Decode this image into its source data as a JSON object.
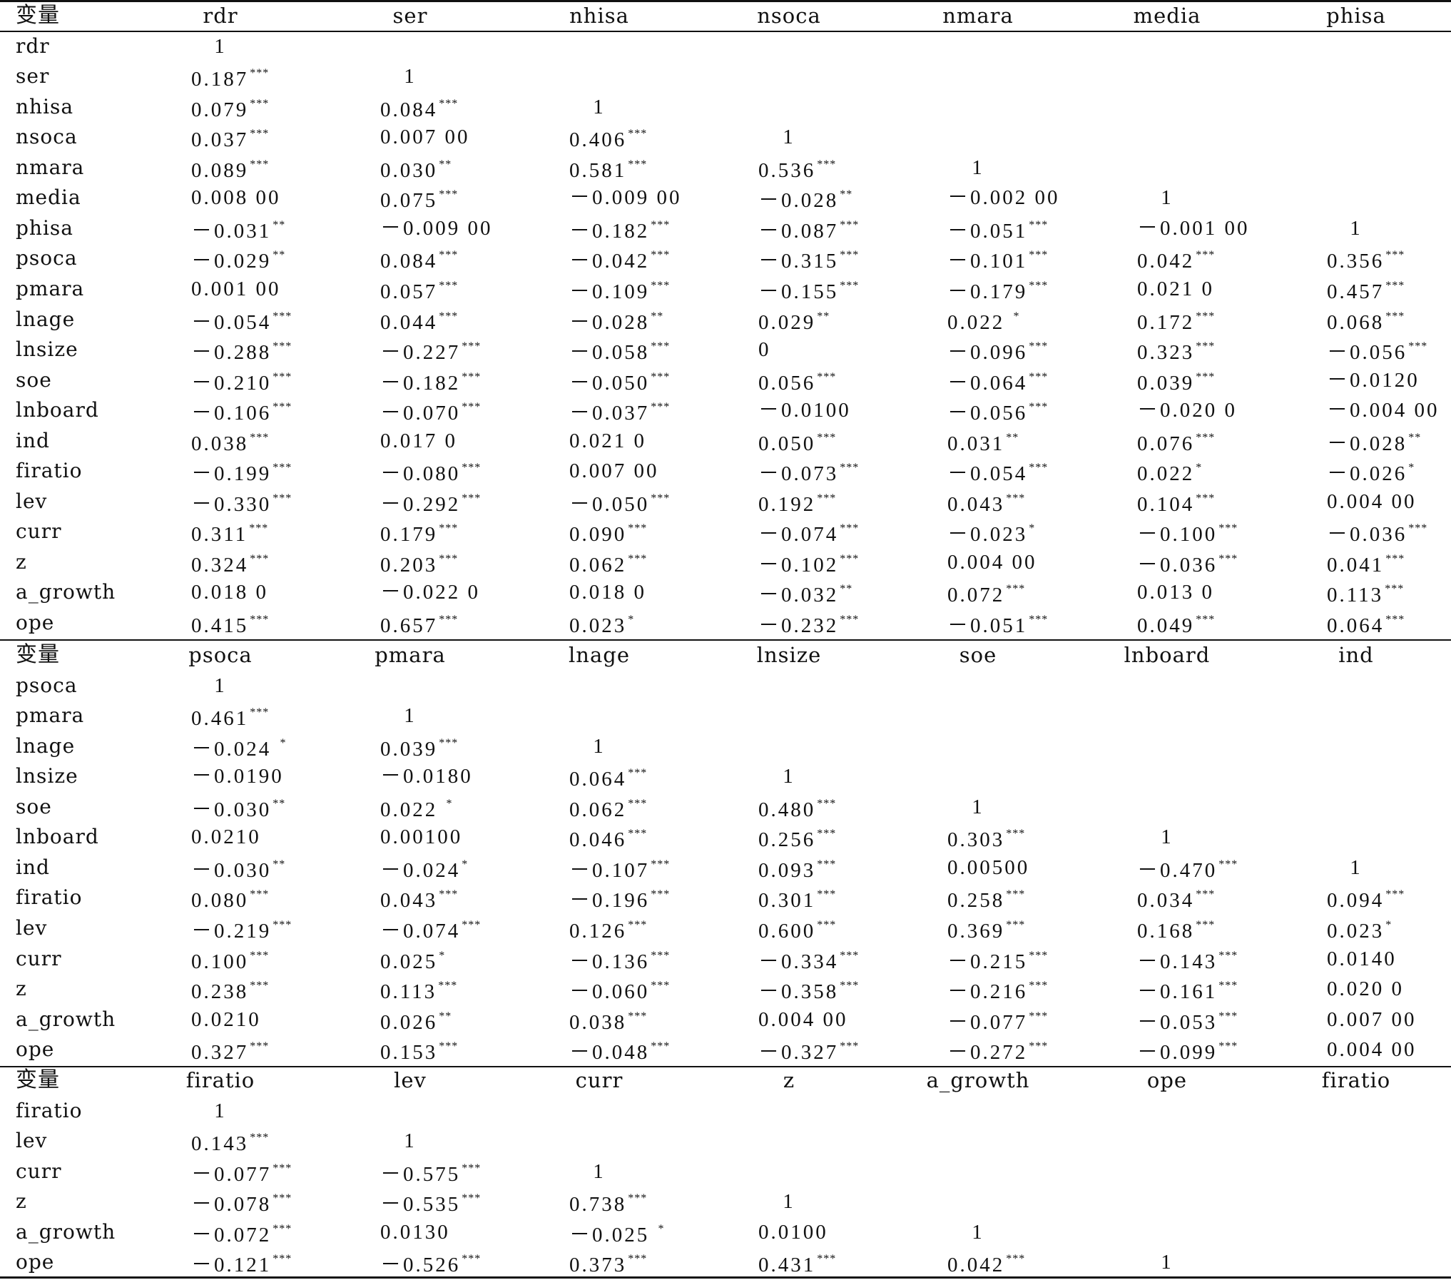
{
  "blocks": [
    {
      "header": [
        "变量",
        "rdr",
        "ser",
        "nhisa",
        "nsoca",
        "nmara",
        "media",
        "phisa"
      ],
      "rows": [
        {
          "var": "rdr",
          "values": [
            "1"
          ]
        },
        {
          "var": "ser",
          "values": [
            "0.187***",
            "1"
          ]
        },
        {
          "var": "nhisa",
          "values": [
            "0.079***",
            "0.084***",
            "1"
          ]
        },
        {
          "var": "nsoca",
          "values": [
            "0.037***",
            "0.007 00",
            "0.406***",
            "1"
          ]
        },
        {
          "var": "nmara",
          "values": [
            "0.089***",
            "0.030**",
            "0.581***",
            "0.536***",
            "1"
          ]
        },
        {
          "var": "media",
          "values": [
            "0.008 00",
            "0.075***",
            "－0.009 00",
            "－0.028**",
            "－0.002 00",
            "1"
          ]
        },
        {
          "var": "phisa",
          "values": [
            "－0.031**",
            "－0.009 00",
            "－0.182***",
            "－0.087***",
            "－0.051***",
            "－0.001 00",
            "1"
          ]
        },
        {
          "var": "psoca",
          "values": [
            "－0.029**",
            "0.084***",
            "－0.042***",
            "－0.315***",
            "－0.101***",
            "0.042***",
            "0.356***"
          ]
        },
        {
          "var": "pmara",
          "values": [
            "0.001 00",
            "0.057***",
            "－0.109***",
            "－0.155***",
            "－0.179***",
            "0.021 0",
            "0.457***"
          ]
        },
        {
          "var": "lnage",
          "values": [
            "－0.054***",
            "0.044***",
            "－0.028**",
            "0.029**",
            "0.022 *",
            "0.172***",
            "0.068***"
          ]
        },
        {
          "var": "lnsize",
          "values": [
            "－0.288***",
            "－0.227***",
            "－0.058***",
            "0",
            "－0.096***",
            "0.323***",
            "－0.056***"
          ]
        },
        {
          "var": "soe",
          "values": [
            "－0.210***",
            "－0.182***",
            "－0.050***",
            "0.056***",
            "－0.064***",
            "0.039***",
            "－0.0120"
          ]
        },
        {
          "var": "lnboard",
          "values": [
            "－0.106***",
            "－0.070***",
            "－0.037***",
            "－0.0100",
            "－0.056***",
            "－0.020 0",
            "－0.004 00"
          ]
        },
        {
          "var": "ind",
          "values": [
            "0.038***",
            "0.017 0",
            "0.021 0",
            "0.050***",
            "0.031**",
            "0.076***",
            "－0.028**"
          ]
        },
        {
          "var": "firatio",
          "values": [
            "－0.199***",
            "－0.080***",
            "0.007 00",
            "－0.073***",
            "－0.054***",
            "0.022*",
            "－0.026*"
          ]
        },
        {
          "var": "lev",
          "values": [
            "－0.330***",
            "－0.292***",
            "－0.050***",
            "0.192***",
            "0.043***",
            "0.104***",
            "0.004 00"
          ]
        },
        {
          "var": "curr",
          "values": [
            "0.311***",
            "0.179***",
            "0.090***",
            "－0.074***",
            "－0.023*",
            "－0.100***",
            "－0.036***"
          ]
        },
        {
          "var": "z",
          "values": [
            "0.324***",
            "0.203***",
            "0.062***",
            "－0.102***",
            "0.004 00",
            "－0.036***",
            "0.041***"
          ]
        },
        {
          "var": "a_growth",
          "values": [
            "0.018 0",
            "－0.022 0",
            "0.018 0",
            "－0.032**",
            "0.072***",
            "0.013 0",
            "0.113***"
          ]
        },
        {
          "var": "ope",
          "values": [
            "0.415***",
            "0.657***",
            "0.023*",
            "－0.232***",
            "－0.051***",
            "0.049***",
            "0.064***"
          ]
        }
      ]
    },
    {
      "header": [
        "变量",
        "psoca",
        "pmara",
        "lnage",
        "lnsize",
        "soe",
        "lnboard",
        "ind"
      ],
      "rows": [
        {
          "var": "psoca",
          "values": [
            "1"
          ]
        },
        {
          "var": "pmara",
          "values": [
            "0.461***",
            "1"
          ]
        },
        {
          "var": "lnage",
          "values": [
            "－0.024 *",
            "0.039***",
            "1"
          ]
        },
        {
          "var": "lnsize",
          "values": [
            "－0.0190",
            "－0.0180",
            "0.064***",
            "1"
          ]
        },
        {
          "var": "soe",
          "values": [
            "－0.030**",
            "0.022 *",
            "0.062***",
            "0.480***",
            "1"
          ]
        },
        {
          "var": "lnboard",
          "values": [
            "0.0210",
            "0.00100",
            "0.046***",
            "0.256***",
            "0.303***",
            "1"
          ]
        },
        {
          "var": "ind",
          "values": [
            "－0.030**",
            "－0.024*",
            "－0.107***",
            "0.093***",
            "0.00500",
            "－0.470***",
            "1"
          ]
        },
        {
          "var": "firatio",
          "values": [
            "0.080***",
            "0.043***",
            "－0.196***",
            "0.301***",
            "0.258***",
            "0.034***",
            "0.094***"
          ]
        },
        {
          "var": "lev",
          "values": [
            "－0.219***",
            "－0.074***",
            "0.126***",
            "0.600***",
            "0.369***",
            "0.168***",
            "0.023*"
          ]
        },
        {
          "var": "curr",
          "values": [
            "0.100***",
            "0.025*",
            "－0.136***",
            "－0.334***",
            "－0.215***",
            "－0.143***",
            "0.0140"
          ]
        },
        {
          "var": "z",
          "values": [
            "0.238***",
            "0.113***",
            "－0.060***",
            "－0.358***",
            "－0.216***",
            "－0.161***",
            "0.020 0"
          ]
        },
        {
          "var": "a_growth",
          "values": [
            "0.0210",
            "0.026**",
            "0.038***",
            "0.004 00",
            "－0.077***",
            "－0.053***",
            "0.007 00"
          ]
        },
        {
          "var": "ope",
          "values": [
            "0.327***",
            "0.153***",
            "－0.048***",
            "－0.327***",
            "－0.272***",
            "－0.099***",
            "0.004 00"
          ]
        }
      ]
    },
    {
      "header": [
        "变量",
        "firatio",
        "lev",
        "curr",
        "z",
        "a_growth",
        "ope",
        "firatio"
      ],
      "rows": [
        {
          "var": "firatio",
          "values": [
            "1"
          ]
        },
        {
          "var": "lev",
          "values": [
            "0.143***",
            "1"
          ]
        },
        {
          "var": "curr",
          "values": [
            "－0.077***",
            "－0.575***",
            "1"
          ]
        },
        {
          "var": "z",
          "values": [
            "－0.078***",
            "－0.535***",
            "0.738***",
            "1"
          ]
        },
        {
          "var": "a_growth",
          "values": [
            "－0.072***",
            "0.0130",
            "－0.025 *",
            "0.0100",
            "1"
          ]
        },
        {
          "var": "ope",
          "values": [
            "－0.121***",
            "－0.526***",
            "0.373***",
            "0.431***",
            "0.042***",
            "1"
          ]
        }
      ]
    }
  ]
}
